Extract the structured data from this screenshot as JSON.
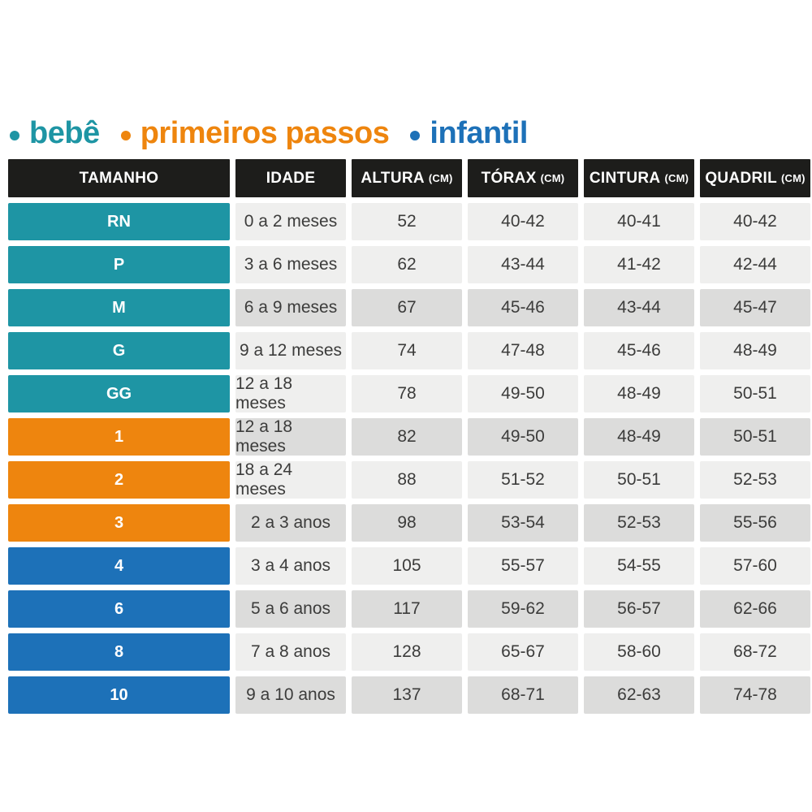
{
  "legend": {
    "items": [
      {
        "label": "bebê",
        "color": "#1e95a4",
        "group": "bebe"
      },
      {
        "label": "primeiros passos",
        "color": "#ee850e",
        "group": "passos"
      },
      {
        "label": "infantil",
        "color": "#1d71b8",
        "group": "infantil"
      }
    ]
  },
  "colors": {
    "teal_bebe": "#1e95a4",
    "orange_passos": "#ee850e",
    "blue_infantil": "#1d71b8",
    "header_background": "#1d1d1b",
    "row_light": "#efefee",
    "row_dark": "#dcdcdb",
    "cell_text": "#3c3c3b"
  },
  "chart_data": {
    "type": "table",
    "columns": [
      {
        "label": "TAMANHO",
        "unit": ""
      },
      {
        "label": "IDADE",
        "unit": ""
      },
      {
        "label": "ALTURA",
        "unit": "(CM)"
      },
      {
        "label": "TÓRAX",
        "unit": "(CM)"
      },
      {
        "label": "CINTURA",
        "unit": "(CM)"
      },
      {
        "label": "QUADRIL",
        "unit": "(CM)"
      }
    ],
    "rows": [
      {
        "size": "RN",
        "group": "bebe",
        "shade": "light",
        "idade": "0 a 2 meses",
        "altura": "52",
        "torax": "40-42",
        "cintura": "40-41",
        "quadril": "40-42"
      },
      {
        "size": "P",
        "group": "bebe",
        "shade": "light",
        "idade": "3 a 6 meses",
        "altura": "62",
        "torax": "43-44",
        "cintura": "41-42",
        "quadril": "42-44"
      },
      {
        "size": "M",
        "group": "bebe",
        "shade": "dark",
        "idade": "6 a 9 meses",
        "altura": "67",
        "torax": "45-46",
        "cintura": "43-44",
        "quadril": "45-47"
      },
      {
        "size": "G",
        "group": "bebe",
        "shade": "light",
        "idade": "9 a 12 meses",
        "altura": "74",
        "torax": "47-48",
        "cintura": "45-46",
        "quadril": "48-49"
      },
      {
        "size": "GG",
        "group": "bebe",
        "shade": "light",
        "idade": "12 a 18 meses",
        "altura": "78",
        "torax": "49-50",
        "cintura": "48-49",
        "quadril": "50-51"
      },
      {
        "size": "1",
        "group": "passos",
        "shade": "dark",
        "idade": "12 a 18 meses",
        "altura": "82",
        "torax": "49-50",
        "cintura": "48-49",
        "quadril": "50-51"
      },
      {
        "size": "2",
        "group": "passos",
        "shade": "light",
        "idade": "18 a 24 meses",
        "altura": "88",
        "torax": "51-52",
        "cintura": "50-51",
        "quadril": "52-53"
      },
      {
        "size": "3",
        "group": "passos",
        "shade": "dark",
        "idade": "2 a 3 anos",
        "altura": "98",
        "torax": "53-54",
        "cintura": "52-53",
        "quadril": "55-56"
      },
      {
        "size": "4",
        "group": "infantil",
        "shade": "light",
        "idade": "3 a 4 anos",
        "altura": "105",
        "torax": "55-57",
        "cintura": "54-55",
        "quadril": "57-60"
      },
      {
        "size": "6",
        "group": "infantil",
        "shade": "dark",
        "idade": "5 a 6 anos",
        "altura": "117",
        "torax": "59-62",
        "cintura": "56-57",
        "quadril": "62-66"
      },
      {
        "size": "8",
        "group": "infantil",
        "shade": "light",
        "idade": "7 a 8 anos",
        "altura": "128",
        "torax": "65-67",
        "cintura": "58-60",
        "quadril": "68-72"
      },
      {
        "size": "10",
        "group": "infantil",
        "shade": "dark",
        "idade": "9 a 10 anos",
        "altura": "137",
        "torax": "68-71",
        "cintura": "62-63",
        "quadril": "74-78"
      }
    ]
  }
}
